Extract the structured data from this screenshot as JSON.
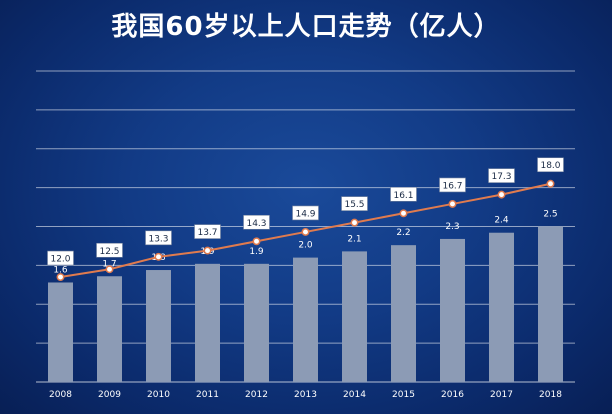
{
  "chart_data": {
    "type": "bar",
    "title": "我国60岁以上人口走势（亿人）",
    "categories": [
      "2008",
      "2009",
      "2010",
      "2011",
      "2012",
      "2013",
      "2014",
      "2015",
      "2016",
      "2017",
      "2018"
    ],
    "ylim": [
      0,
      20
    ],
    "grid": true,
    "series": [
      {
        "type": "bar",
        "values": [
          1.6,
          1.7,
          1.8,
          1.9,
          1.9,
          2.0,
          2.1,
          2.2,
          2.3,
          2.4,
          2.5
        ],
        "color": "#8c9bb5"
      },
      {
        "type": "line",
        "values": [
          12.0,
          12.5,
          13.3,
          13.7,
          14.3,
          14.9,
          15.5,
          16.1,
          16.7,
          17.3,
          18.0
        ],
        "color": "#e07b4e"
      }
    ]
  },
  "colors": {
    "background": "#123b86",
    "bar": "#8c9bb5",
    "line": "#e07b4e",
    "grid": "#ffffff",
    "label_box": "#ffffff"
  }
}
